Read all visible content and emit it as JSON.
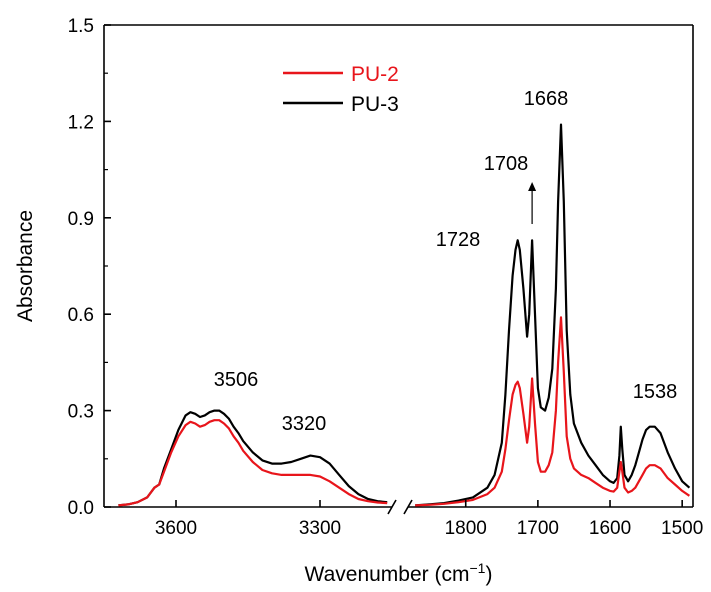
{
  "chart_data": {
    "type": "line",
    "title": "",
    "xlabel": "Wavenumber (cm−1)",
    "xlabel_parts": {
      "prefix": "Wavenumber (cm",
      "superscript": "−1",
      "suffix": ")"
    },
    "ylabel": "Absorbance",
    "ylim": [
      0,
      1.5
    ],
    "yticks": [
      "0.0",
      "0.3",
      "0.6",
      "0.9",
      "1.2",
      "1.5"
    ],
    "x_axis_break": true,
    "x_reversed": true,
    "x_segments": [
      {
        "xlim": [
          3750,
          3150
        ],
        "ticks": [
          "3600",
          "3300"
        ]
      },
      {
        "xlim": [
          1880,
          1485
        ],
        "ticks": [
          "1800",
          "1700",
          "1600",
          "1500"
        ]
      }
    ],
    "legend": {
      "position": "top-left"
    },
    "series": [
      {
        "name": "PU-2",
        "color": "#e8151b",
        "segments": [
          {
            "x": [
              3720,
              3700,
              3680,
              3660,
              3645,
              3635,
              3625,
              3610,
              3595,
              3580,
              3570,
              3560,
              3550,
              3540,
              3530,
              3520,
              3510,
              3500,
              3490,
              3480,
              3470,
              3460,
              3440,
              3420,
              3400,
              3380,
              3360,
              3340,
              3320,
              3300,
              3280,
              3260,
              3240,
              3220,
              3200,
              3180,
              3160
            ],
            "y": [
              0.005,
              0.008,
              0.015,
              0.03,
              0.06,
              0.07,
              0.11,
              0.17,
              0.22,
              0.255,
              0.265,
              0.26,
              0.25,
              0.255,
              0.265,
              0.27,
              0.27,
              0.26,
              0.245,
              0.22,
              0.2,
              0.175,
              0.14,
              0.115,
              0.105,
              0.1,
              0.1,
              0.1,
              0.1,
              0.095,
              0.08,
              0.06,
              0.04,
              0.025,
              0.018,
              0.014,
              0.012
            ]
          },
          {
            "x": [
              1870,
              1850,
              1830,
              1810,
              1790,
              1770,
              1760,
              1750,
              1745,
              1740,
              1735,
              1731,
              1728,
              1725,
              1720,
              1715,
              1712,
              1708,
              1704,
              1700,
              1696,
              1690,
              1685,
              1680,
              1675,
              1672,
              1668,
              1664,
              1660,
              1655,
              1650,
              1640,
              1630,
              1620,
              1610,
              1600,
              1595,
              1590,
              1587,
              1585,
              1583,
              1580,
              1575,
              1570,
              1565,
              1560,
              1555,
              1550,
              1545,
              1538,
              1530,
              1520,
              1510,
              1500,
              1490
            ],
            "y": [
              0.005,
              0.007,
              0.01,
              0.015,
              0.022,
              0.04,
              0.06,
              0.11,
              0.18,
              0.27,
              0.35,
              0.38,
              0.39,
              0.37,
              0.29,
              0.2,
              0.25,
              0.4,
              0.26,
              0.14,
              0.11,
              0.11,
              0.13,
              0.17,
              0.3,
              0.45,
              0.59,
              0.42,
              0.22,
              0.15,
              0.12,
              0.1,
              0.09,
              0.075,
              0.06,
              0.05,
              0.048,
              0.06,
              0.11,
              0.14,
              0.11,
              0.06,
              0.045,
              0.05,
              0.06,
              0.08,
              0.1,
              0.12,
              0.13,
              0.13,
              0.12,
              0.09,
              0.07,
              0.05,
              0.035
            ]
          }
        ]
      },
      {
        "name": "PU-3",
        "color": "#000000",
        "segments": [
          {
            "x": [
              3720,
              3700,
              3680,
              3660,
              3645,
              3635,
              3625,
              3610,
              3595,
              3580,
              3570,
              3560,
              3550,
              3540,
              3530,
              3520,
              3510,
              3500,
              3490,
              3480,
              3470,
              3460,
              3440,
              3420,
              3400,
              3380,
              3360,
              3340,
              3320,
              3300,
              3280,
              3260,
              3240,
              3220,
              3200,
              3180,
              3160
            ],
            "y": [
              0.005,
              0.008,
              0.015,
              0.03,
              0.06,
              0.07,
              0.12,
              0.18,
              0.24,
              0.285,
              0.295,
              0.29,
              0.28,
              0.285,
              0.295,
              0.3,
              0.3,
              0.29,
              0.275,
              0.25,
              0.23,
              0.205,
              0.17,
              0.145,
              0.135,
              0.135,
              0.14,
              0.15,
              0.16,
              0.155,
              0.135,
              0.1,
              0.065,
              0.04,
              0.025,
              0.018,
              0.015
            ]
          },
          {
            "x": [
              1870,
              1850,
              1830,
              1810,
              1790,
              1770,
              1760,
              1750,
              1745,
              1740,
              1735,
              1731,
              1728,
              1725,
              1720,
              1715,
              1712,
              1708,
              1704,
              1700,
              1696,
              1690,
              1685,
              1680,
              1675,
              1672,
              1668,
              1664,
              1660,
              1655,
              1650,
              1640,
              1630,
              1620,
              1610,
              1600,
              1595,
              1590,
              1587,
              1585,
              1583,
              1580,
              1575,
              1570,
              1565,
              1560,
              1555,
              1550,
              1545,
              1538,
              1530,
              1520,
              1510,
              1500,
              1490
            ],
            "y": [
              0.005,
              0.008,
              0.012,
              0.02,
              0.03,
              0.06,
              0.1,
              0.2,
              0.35,
              0.55,
              0.72,
              0.8,
              0.83,
              0.8,
              0.68,
              0.53,
              0.6,
              0.83,
              0.6,
              0.37,
              0.31,
              0.3,
              0.34,
              0.43,
              0.68,
              0.95,
              1.19,
              0.95,
              0.55,
              0.35,
              0.26,
              0.2,
              0.16,
              0.13,
              0.1,
              0.08,
              0.075,
              0.09,
              0.16,
              0.25,
              0.18,
              0.1,
              0.08,
              0.1,
              0.13,
              0.17,
              0.21,
              0.24,
              0.25,
              0.25,
              0.23,
              0.17,
              0.12,
              0.08,
              0.06
            ]
          }
        ]
      }
    ],
    "annotations": [
      {
        "text": "3506"
      },
      {
        "text": "3320"
      },
      {
        "text": "1728"
      },
      {
        "text": "1708"
      },
      {
        "text": "1668"
      },
      {
        "text": "1538"
      }
    ]
  }
}
